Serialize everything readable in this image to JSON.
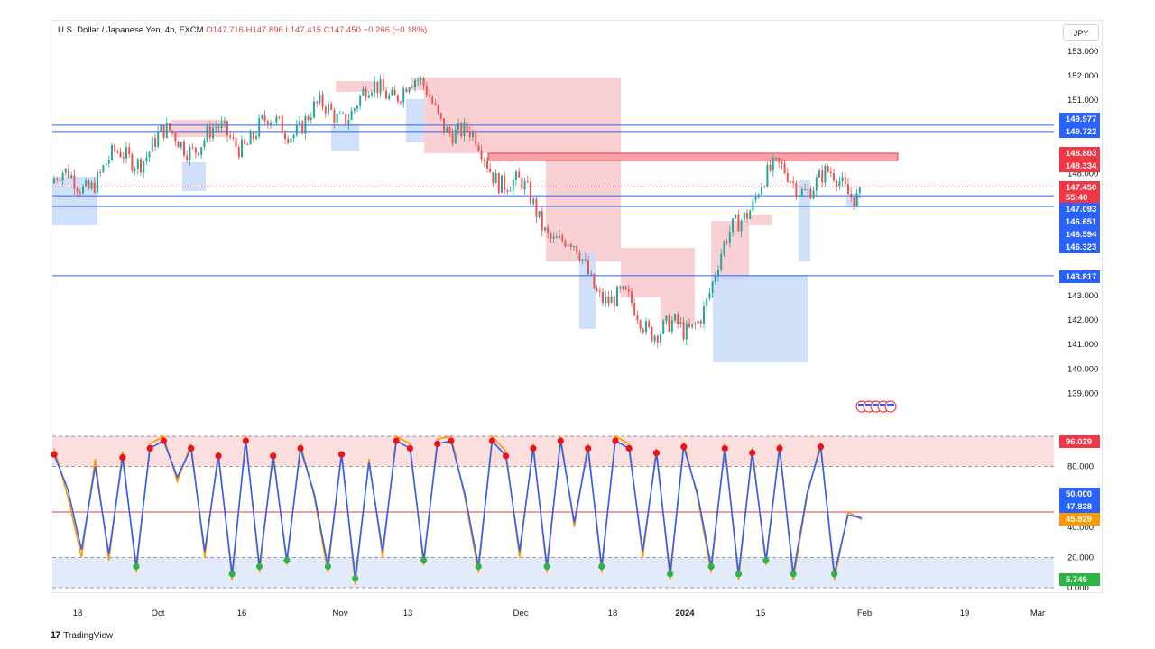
{
  "header": {
    "symbol": "U.S. Dollar / Japanese Yen, 4h, FXCM",
    "ohlc": "O147.716  H147.896  L147.415  C147.450  −0.266 (−0.18%)",
    "currency": "JPY"
  },
  "footer": {
    "brand": "TradingView"
  },
  "colors": {
    "up": "#2962ff",
    "down": "#f23645",
    "supply": "#f7b9bd",
    "demand": "#b9cef7",
    "stochK": "#2962ff",
    "stochD": "#ff9800"
  },
  "chart_data": [
    {
      "type": "candlestick",
      "title": "U.S. Dollar / Japanese Yen, 4h, FXCM",
      "x_tick_labels": [
        "18",
        "Oct",
        "16",
        "Nov",
        "13",
        "Dec",
        "18",
        "2024",
        "15",
        "Feb",
        "19",
        "Mar"
      ],
      "y_tick_labels": [
        "153.000",
        "152.000",
        "151.000",
        "148.000",
        "143.000",
        "142.000",
        "141.000",
        "140.000",
        "139.000"
      ],
      "ylim": [
        138.5,
        153.5
      ],
      "close_path": [
        [
          "18",
          147.6
        ],
        [
          "Oct",
          149.3
        ],
        [
          "16",
          149.5
        ],
        [
          "Nov",
          150.6
        ],
        [
          "13",
          151.8
        ],
        [
          "Dec",
          147.2
        ],
        [
          "18",
          142.8
        ],
        [
          "2024",
          141.2
        ],
        [
          "15",
          147.9
        ],
        [
          "Feb",
          147.45
        ]
      ],
      "price_labels": [
        {
          "value": "149.977",
          "kind": "blue"
        },
        {
          "value": "149.722",
          "kind": "blue"
        },
        {
          "value": "148.803",
          "kind": "red"
        },
        {
          "value": "148.334",
          "kind": "red"
        },
        {
          "value": "147.450",
          "kind": "red"
        },
        {
          "value": "55:40",
          "kind": "red"
        },
        {
          "value": "147.093",
          "kind": "blue"
        },
        {
          "value": "146.651",
          "kind": "blue"
        },
        {
          "value": "146.594",
          "kind": "blue"
        },
        {
          "value": "146.323",
          "kind": "blue"
        },
        {
          "value": "143.817",
          "kind": "blue"
        }
      ],
      "horizontal_levels": [
        149.977,
        149.722,
        147.093,
        146.651,
        143.817
      ],
      "grid": false
    },
    {
      "type": "line",
      "title": "",
      "y_tick_labels": [
        "80.000",
        "40.000",
        "20.000",
        "0.000"
      ],
      "ylim": [
        0,
        100
      ],
      "bands": [
        20,
        80
      ],
      "value_labels": [
        {
          "value": "96.029",
          "kind": "red"
        },
        {
          "value": "50.000",
          "kind": "blue"
        },
        {
          "value": "47.838",
          "kind": "blue"
        },
        {
          "value": "45.929",
          "kind": "orange"
        },
        {
          "value": "5.749",
          "kind": "green"
        }
      ],
      "series": [
        {
          "values": [
            92,
            60,
            20,
            85,
            18,
            90,
            10,
            95,
            100,
            70,
            95,
            20,
            90,
            5,
            100,
            10,
            90,
            15,
            95,
            60,
            10,
            90,
            2,
            85,
            20,
            100,
            95,
            15,
            98,
            100,
            60,
            10,
            100,
            90,
            20,
            95,
            10,
            100,
            40,
            95,
            10,
            100,
            95,
            20,
            92,
            5,
            96,
            60,
            10,
            95,
            5,
            92,
            15,
            95,
            5,
            60,
            96,
            5,
            50,
            45
          ]
        },
        {
          "values": [
            88,
            65,
            25,
            80,
            22,
            86,
            14,
            92,
            97,
            73,
            92,
            24,
            87,
            9,
            97,
            14,
            87,
            18,
            92,
            62,
            14,
            88,
            6,
            83,
            24,
            97,
            92,
            18,
            95,
            97,
            62,
            14,
            97,
            87,
            24,
            92,
            14,
            97,
            43,
            92,
            14,
            97,
            92,
            24,
            89,
            9,
            93,
            62,
            14,
            92,
            9,
            89,
            18,
            92,
            9,
            62,
            93,
            9,
            48,
            46
          ]
        }
      ]
    }
  ]
}
